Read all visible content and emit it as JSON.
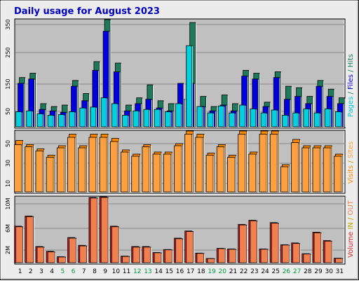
{
  "title": "Daily usage for August 2023",
  "colors": {
    "page_bg": "#ECECEC",
    "panel_bg": "#C0C0C0",
    "title": "#0000C0",
    "hits": "#1E7A5A",
    "files": "#0000E0",
    "pages": "#00D0E0",
    "visits": "#FF8800",
    "sites": "#FFA040",
    "kbytes": "#DD2222",
    "kbytes_out": "#F08050",
    "weekend_label": "#00A040"
  },
  "side_labels": {
    "hits_panel": [
      {
        "text": "Pages",
        "color": "#00C8D8"
      },
      {
        "text": " / ",
        "color": "#1E7A5A"
      },
      {
        "text": "Files",
        "color": "#0000E0"
      },
      {
        "text": " / ",
        "color": "#1E7A5A"
      },
      {
        "text": "Hits",
        "color": "#1E7A5A"
      }
    ],
    "visits_panel": [
      {
        "text": "Visits",
        "color": "#FF8800"
      },
      {
        "text": " / ",
        "color": "#C0A000"
      },
      {
        "text": "Sites",
        "color": "#FFA040"
      }
    ],
    "volume_panel": [
      {
        "text": "Volume",
        "color": "#DD2222"
      },
      {
        "text": " IN ",
        "color": "#C0A000"
      },
      {
        "text": "/",
        "color": "#C0A000"
      },
      {
        "text": " OUT",
        "color": "#F08050"
      }
    ]
  },
  "chart_data": [
    {
      "type": "bar",
      "name": "hits-files-pages",
      "categories": [
        "1",
        "2",
        "3",
        "4",
        "5",
        "6",
        "7",
        "8",
        "9",
        "10",
        "11",
        "12",
        "13",
        "14",
        "15",
        "16",
        "17",
        "18",
        "19",
        "20",
        "21",
        "22",
        "23",
        "24",
        "25",
        "26",
        "27",
        "28",
        "29",
        "30",
        "31"
      ],
      "weekend_days": [
        "5",
        "6",
        "12",
        "13",
        "19",
        "20",
        "26",
        "27"
      ],
      "ticks": [
        "350",
        "250",
        "150",
        "50"
      ],
      "ylim": [
        0,
        370
      ],
      "series": [
        {
          "name": "Hits",
          "values": [
            170,
            185,
            80,
            70,
            75,
            160,
            115,
            225,
            370,
            220,
            75,
            100,
            145,
            90,
            80,
            95,
            360,
            105,
            70,
            110,
            80,
            195,
            185,
            85,
            190,
            140,
            135,
            105,
            160,
            130,
            100
          ]
        },
        {
          "name": "Files",
          "values": [
            150,
            165,
            60,
            55,
            50,
            140,
            90,
            195,
            330,
            190,
            55,
            80,
            95,
            65,
            55,
            150,
            150,
            70,
            55,
            75,
            55,
            175,
            165,
            70,
            170,
            95,
            105,
            80,
            140,
            105,
            80
          ]
        },
        {
          "name": "Pages",
          "values": [
            52,
            55,
            45,
            40,
            42,
            52,
            65,
            68,
            100,
            80,
            40,
            55,
            60,
            60,
            52,
            80,
            280,
            70,
            48,
            72,
            48,
            75,
            62,
            48,
            58,
            40,
            48,
            62,
            48,
            62,
            52
          ]
        }
      ]
    },
    {
      "type": "bar",
      "name": "visits-sites",
      "categories": [
        "1",
        "2",
        "3",
        "4",
        "5",
        "6",
        "7",
        "8",
        "9",
        "10",
        "11",
        "12",
        "13",
        "14",
        "15",
        "16",
        "17",
        "18",
        "19",
        "20",
        "21",
        "22",
        "23",
        "24",
        "25",
        "26",
        "27",
        "28",
        "29",
        "30",
        "31"
      ],
      "ticks": [
        "50",
        "30",
        "10"
      ],
      "ylim": [
        0,
        58
      ],
      "series": [
        {
          "name": "Visits",
          "values": [
            49,
            45,
            41,
            35,
            44,
            55,
            44,
            55,
            55,
            51,
            40,
            36,
            45,
            38,
            38,
            46,
            58,
            55,
            37,
            45,
            35,
            58,
            38,
            58,
            58,
            26,
            50,
            44,
            44,
            44,
            36
          ]
        },
        {
          "name": "Sites",
          "values": [
            45,
            43,
            39,
            33,
            42,
            52,
            42,
            52,
            52,
            48,
            38,
            34,
            43,
            36,
            36,
            44,
            55,
            52,
            35,
            43,
            33,
            55,
            36,
            55,
            55,
            24,
            47,
            42,
            42,
            42,
            34
          ]
        }
      ]
    },
    {
      "type": "bar",
      "name": "volume-in-out",
      "categories": [
        "1",
        "2",
        "3",
        "4",
        "5",
        "6",
        "7",
        "8",
        "9",
        "10",
        "11",
        "12",
        "13",
        "14",
        "15",
        "16",
        "17",
        "18",
        "19",
        "20",
        "21",
        "22",
        "23",
        "24",
        "25",
        "26",
        "27",
        "28",
        "29",
        "30",
        "31"
      ],
      "ticks": [
        "10M",
        "6M",
        "2M"
      ],
      "ylim": [
        0,
        11000000
      ],
      "series": [
        {
          "name": "KBytes IN",
          "values": [
            6100000,
            7800000,
            2700000,
            1900000,
            1000000,
            4200000,
            2900000,
            10900000,
            11000000,
            6100000,
            1100000,
            2700000,
            2700000,
            1700000,
            2200000,
            4100000,
            5300000,
            1600000,
            700000,
            2400000,
            2300000,
            6400000,
            7100000,
            2300000,
            6700000,
            3000000,
            3300000,
            1500000,
            5100000,
            3700000,
            750000
          ]
        },
        {
          "name": "KBytes OUT",
          "values": [
            6000000,
            7700000,
            2600000,
            1800000,
            950000,
            4100000,
            2800000,
            10800000,
            10900000,
            6000000,
            1050000,
            2600000,
            2600000,
            1650000,
            2150000,
            4000000,
            5200000,
            1550000,
            680000,
            2350000,
            2250000,
            6300000,
            7000000,
            2250000,
            6600000,
            2950000,
            3200000,
            1450000,
            5000000,
            3600000,
            720000
          ]
        }
      ]
    }
  ]
}
